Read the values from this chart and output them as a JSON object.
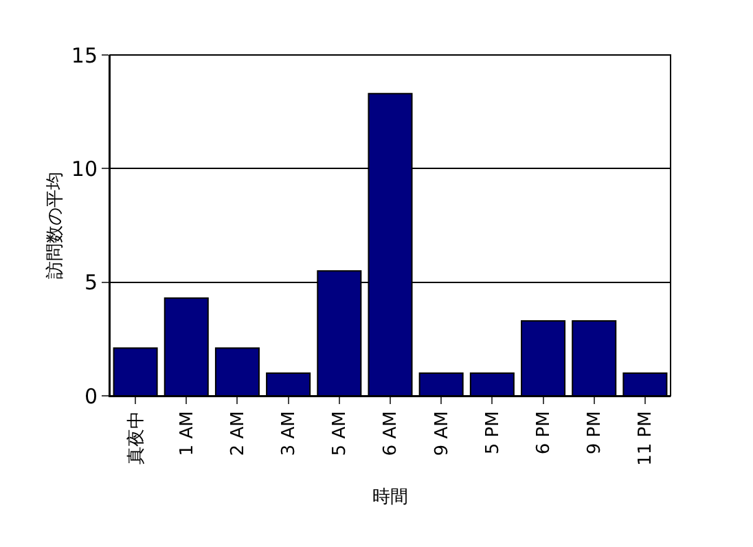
{
  "chart_data": {
    "type": "bar",
    "xlabel": "時間",
    "ylabel": "訪問数の平均",
    "categories": [
      "真夜中",
      "1 AM",
      "2 AM",
      "3 AM",
      "5 AM",
      "6 AM",
      "9 AM",
      "5 PM",
      "6 PM",
      "9 PM",
      "11 PM"
    ],
    "values": [
      2.1,
      4.3,
      2.1,
      1,
      5.5,
      13.3,
      1,
      1,
      3.3,
      3.3,
      1
    ],
    "color": "#000080",
    "ylim": [
      0,
      15
    ],
    "yticks": [
      0,
      5,
      10,
      15
    ],
    "grid": "y"
  }
}
